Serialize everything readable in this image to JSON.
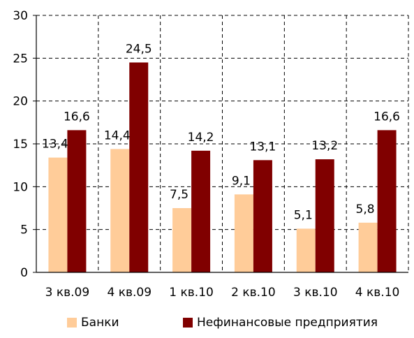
{
  "chart_data": {
    "type": "bar",
    "title": "",
    "xlabel": "",
    "ylabel": "",
    "categories": [
      "3 кв.09",
      "4 кв.09",
      "1 кв.10",
      "2 кв.10",
      "3 кв.10",
      "4 кв.10"
    ],
    "series": [
      {
        "name": "Банки",
        "color": "#ffcc99",
        "values": [
          13.4,
          14.4,
          7.5,
          9.1,
          5.1,
          5.8
        ],
        "labels": [
          "13,4",
          "14,4",
          "7,5",
          "9,1",
          "5,1",
          "5,8"
        ]
      },
      {
        "name": "Нефинансовые предприятия",
        "color": "#800000",
        "values": [
          16.6,
          24.5,
          14.2,
          13.1,
          13.2,
          16.6
        ],
        "labels": [
          "16,6",
          "24,5",
          "14,2",
          "13,1",
          "13,2",
          "16,6"
        ]
      }
    ],
    "yticks": [
      "0",
      "5",
      "10",
      "15",
      "20",
      "25",
      "30"
    ],
    "ylim": [
      0,
      30
    ],
    "grid": "dashed",
    "legend_position": "bottom"
  }
}
